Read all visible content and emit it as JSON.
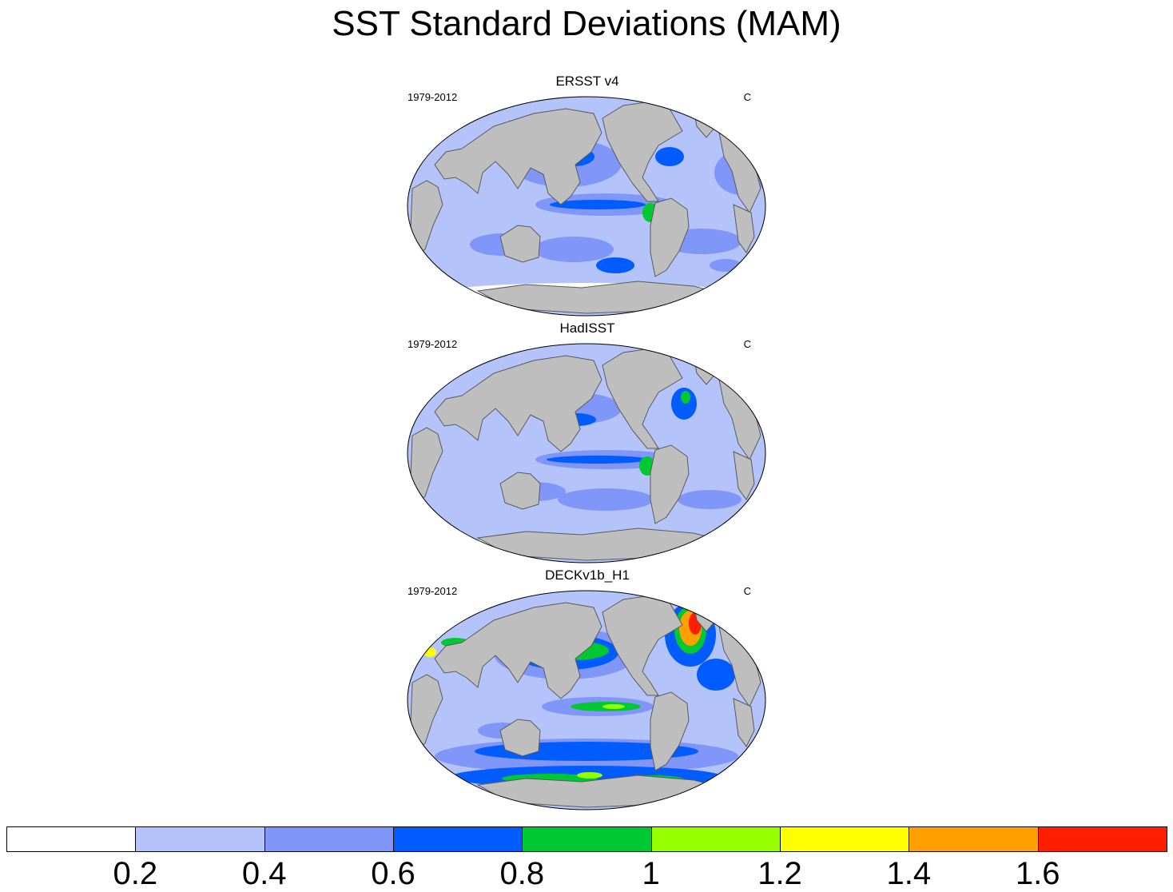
{
  "title": "SST Standard Deviations (MAM)",
  "panels": [
    {
      "title": "ERSST v4",
      "left_label": "1979-2012",
      "right_label": "C",
      "variant": "ersst"
    },
    {
      "title": "HadISST",
      "left_label": "1979-2012",
      "right_label": "C",
      "variant": "hadisst"
    },
    {
      "title": "DECKv1b_H1",
      "left_label": "1979-2012",
      "right_label": "C",
      "variant": "deck"
    }
  ],
  "colorbar": {
    "colors": [
      "#ffffff",
      "#b4c4fa",
      "#8096f8",
      "#005cff",
      "#00c832",
      "#96ff00",
      "#ffff00",
      "#ffa000",
      "#ff1e00"
    ],
    "levels": [
      "0.2",
      "0.4",
      "0.6",
      "0.8",
      "1",
      "1.2",
      "1.4",
      "1.6"
    ],
    "unit": "C"
  }
}
